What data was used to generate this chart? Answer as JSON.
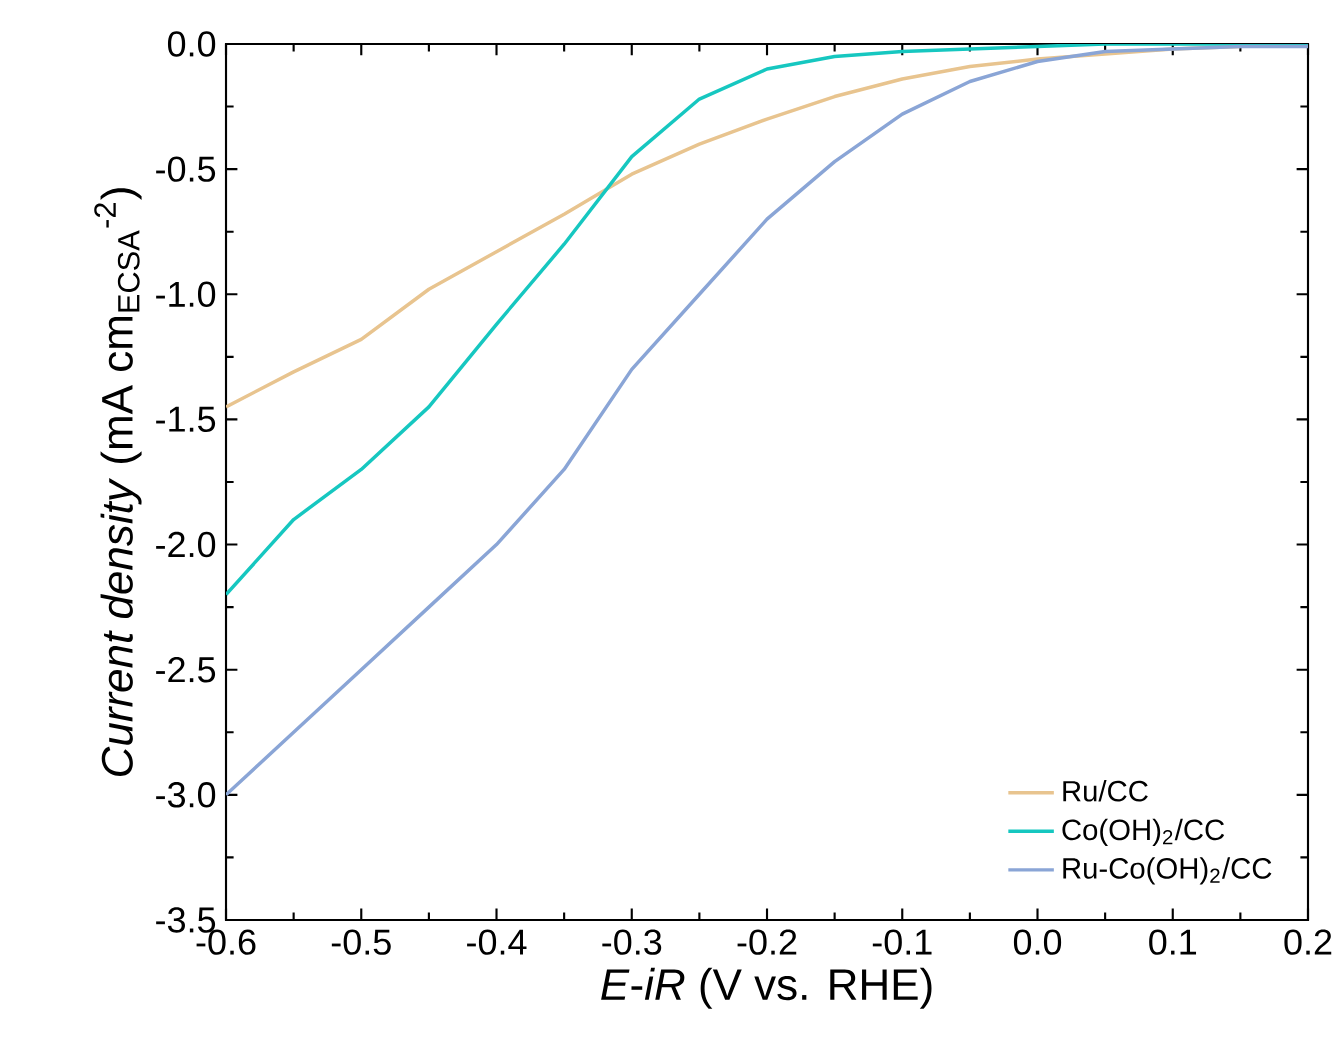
{
  "chart_data": {
    "type": "line",
    "xlabel": "*E*-*iR* (V vs. RHE)",
    "ylabel": "*Current density* (mA cm$_{ECSA}$$^{-2}$)",
    "xlim": [
      -0.6,
      0.2
    ],
    "ylim": [
      -3.5,
      0.0
    ],
    "xticks": [
      {
        "value": -0.6,
        "label": "-0.6"
      },
      {
        "value": -0.5,
        "label": "-0.5"
      },
      {
        "value": -0.4,
        "label": "-0.4"
      },
      {
        "value": -0.3,
        "label": "-0.3"
      },
      {
        "value": -0.2,
        "label": "-0.2"
      },
      {
        "value": -0.1,
        "label": "-0.1"
      },
      {
        "value": 0.0,
        "label": "0.0"
      },
      {
        "value": 0.1,
        "label": "0.1"
      },
      {
        "value": 0.2,
        "label": "0.2"
      }
    ],
    "yticks": [
      {
        "value": -3.5,
        "label": "-3.5"
      },
      {
        "value": -3.0,
        "label": "-3.0"
      },
      {
        "value": -2.5,
        "label": "-2.5"
      },
      {
        "value": -2.0,
        "label": "-2.0"
      },
      {
        "value": -1.5,
        "label": "-1.5"
      },
      {
        "value": -1.0,
        "label": "-1.0"
      },
      {
        "value": -0.5,
        "label": "-0.5"
      },
      {
        "value": 0.0,
        "label": "0.0"
      }
    ],
    "x": [
      -0.6,
      -0.55,
      -0.5,
      -0.45,
      -0.4,
      -0.35,
      -0.3,
      -0.25,
      -0.2,
      -0.15,
      -0.1,
      -0.05,
      0.0,
      0.05,
      0.1,
      0.15,
      0.2
    ],
    "series": [
      {
        "name": "Ru/CC",
        "color": "#e8c48f",
        "values": [
          -1.45,
          -1.31,
          -1.18,
          -0.98,
          -0.83,
          -0.68,
          -0.52,
          -0.4,
          -0.3,
          -0.21,
          -0.14,
          -0.09,
          -0.06,
          -0.04,
          -0.02,
          -0.01,
          null
        ]
      },
      {
        "name": "Co(OH)$_{2}$/CC",
        "color": "#16c7c0",
        "values": [
          -2.2,
          -1.9,
          -1.7,
          -1.45,
          -1.12,
          -0.8,
          -0.45,
          -0.22,
          -0.1,
          -0.05,
          -0.03,
          -0.02,
          -0.01,
          0.0,
          0.0,
          0.0,
          0.0
        ]
      },
      {
        "name": "Ru-Co(OH)$_{2}$/CC",
        "color": "#8aa5d6",
        "values": [
          -3.0,
          -2.75,
          -2.5,
          -2.25,
          -2.0,
          -1.7,
          -1.3,
          -1.0,
          -0.7,
          -0.47,
          -0.28,
          -0.15,
          -0.07,
          -0.03,
          -0.02,
          -0.01,
          -0.01
        ]
      }
    ],
    "legend": "bottom right",
    "marker": "none",
    "line_style": "solid"
  }
}
